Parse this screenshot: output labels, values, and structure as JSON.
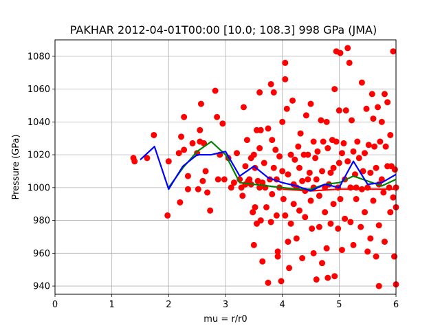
{
  "chart_data": {
    "type": "scatter",
    "title": "PAKHAR 2012-04-01T00:00 [10.0; 108.3] 998 GPa (JMA)",
    "xlabel": "mu = r/r0",
    "ylabel": "Pressure (GPa)",
    "xlim": [
      0,
      6
    ],
    "ylim": [
      935,
      1090
    ],
    "xticks": [
      0,
      1,
      2,
      3,
      4,
      5,
      6
    ],
    "yticks": [
      940,
      960,
      980,
      1000,
      1020,
      1040,
      1060,
      1080
    ],
    "grid": true,
    "colors": {
      "points": "#ff0000",
      "green_line": "#008000",
      "blue_line": "#0000ff",
      "red_line": "#ff0000",
      "grid": "#b0b0b0"
    },
    "points": [
      [
        1.38,
        1018
      ],
      [
        1.4,
        1016
      ],
      [
        1.62,
        1018
      ],
      [
        1.74,
        1032
      ],
      [
        1.98,
        983
      ],
      [
        2.0,
        1016
      ],
      [
        2.18,
        1021
      ],
      [
        2.2,
        991
      ],
      [
        2.22,
        1031
      ],
      [
        2.27,
        1043
      ],
      [
        2.27,
        1023
      ],
      [
        2.34,
        1007
      ],
      [
        2.34,
        999
      ],
      [
        2.42,
        1027
      ],
      [
        2.5,
        1021
      ],
      [
        2.52,
        999
      ],
      [
        2.55,
        1035
      ],
      [
        2.55,
        1028
      ],
      [
        2.57,
        1051
      ],
      [
        2.6,
        1004
      ],
      [
        2.62,
        1027
      ],
      [
        2.65,
        1010
      ],
      [
        2.68,
        997
      ],
      [
        2.73,
        986
      ],
      [
        2.82,
        1059
      ],
      [
        2.85,
        1043
      ],
      [
        2.87,
        1005
      ],
      [
        2.9,
        1020
      ],
      [
        2.95,
        1039
      ],
      [
        2.98,
        1005
      ],
      [
        3.05,
        1018
      ],
      [
        3.1,
        1000
      ],
      [
        3.15,
        1003
      ],
      [
        3.2,
        1021
      ],
      [
        3.25,
        1005
      ],
      [
        3.28,
        1000
      ],
      [
        3.3,
        995
      ],
      [
        3.32,
        1049
      ],
      [
        3.35,
        1002
      ],
      [
        3.35,
        1013
      ],
      [
        3.38,
        1029
      ],
      [
        3.4,
        1004
      ],
      [
        3.42,
        1005
      ],
      [
        3.45,
        1018
      ],
      [
        3.45,
        1002
      ],
      [
        3.48,
        985
      ],
      [
        3.5,
        1020
      ],
      [
        3.5,
        965
      ],
      [
        3.52,
        1012
      ],
      [
        3.52,
        988
      ],
      [
        3.55,
        1035
      ],
      [
        3.55,
        978
      ],
      [
        3.57,
        1004
      ],
      [
        3.6,
        1024
      ],
      [
        3.6,
        1000
      ],
      [
        3.6,
        1058
      ],
      [
        3.62,
        1035
      ],
      [
        3.62,
        980
      ],
      [
        3.65,
        955
      ],
      [
        3.65,
        1003
      ],
      [
        3.68,
        1015
      ],
      [
        3.7,
        1000
      ],
      [
        3.72,
        988
      ],
      [
        3.75,
        1036
      ],
      [
        3.75,
        942
      ],
      [
        3.78,
        1005
      ],
      [
        3.8,
        1063
      ],
      [
        3.8,
        979
      ],
      [
        3.82,
        1029
      ],
      [
        3.82,
        996
      ],
      [
        3.85,
        1058
      ],
      [
        3.85,
        1012
      ],
      [
        3.88,
        1023
      ],
      [
        3.9,
        1005
      ],
      [
        3.9,
        983
      ],
      [
        3.92,
        961
      ],
      [
        3.92,
        958
      ],
      [
        3.95,
        1019
      ],
      [
        3.95,
        1000
      ],
      [
        3.98,
        943
      ],
      [
        4.0,
        1040
      ],
      [
        4.0,
        1010
      ],
      [
        4.02,
        993
      ],
      [
        4.05,
        1076
      ],
      [
        4.05,
        1066
      ],
      [
        4.05,
        983
      ],
      [
        4.08,
        1048
      ],
      [
        4.1,
        1008
      ],
      [
        4.1,
        967
      ],
      [
        4.12,
        951
      ],
      [
        4.15,
        1020
      ],
      [
        4.15,
        978
      ],
      [
        4.18,
        1053
      ],
      [
        4.2,
        1002
      ],
      [
        4.2,
        990
      ],
      [
        4.22,
        1017
      ],
      [
        4.25,
        1000
      ],
      [
        4.25,
        969
      ],
      [
        4.28,
        1025
      ],
      [
        4.3,
        1012
      ],
      [
        4.3,
        986
      ],
      [
        4.32,
        1033
      ],
      [
        4.35,
        1004
      ],
      [
        4.35,
        957
      ],
      [
        4.38,
        1020
      ],
      [
        4.4,
        998
      ],
      [
        4.4,
        982
      ],
      [
        4.42,
        1044
      ],
      [
        4.45,
        1020
      ],
      [
        4.45,
        1005
      ],
      [
        4.48,
        1009
      ],
      [
        4.5,
        1051
      ],
      [
        4.5,
        992
      ],
      [
        4.52,
        975
      ],
      [
        4.55,
        1028
      ],
      [
        4.55,
        1000
      ],
      [
        4.55,
        960
      ],
      [
        4.58,
        1018
      ],
      [
        4.6,
        944
      ],
      [
        4.6,
        1005
      ],
      [
        4.62,
        1022
      ],
      [
        4.65,
        995
      ],
      [
        4.65,
        976
      ],
      [
        4.68,
        1041
      ],
      [
        4.7,
        1010
      ],
      [
        4.7,
        954
      ],
      [
        4.72,
        1028
      ],
      [
        4.75,
        1000
      ],
      [
        4.75,
        985
      ],
      [
        4.78,
        1040
      ],
      [
        4.78,
        963
      ],
      [
        4.8,
        1024
      ],
      [
        4.8,
        945
      ],
      [
        4.82,
        1002
      ],
      [
        4.85,
        1009
      ],
      [
        4.85,
        978
      ],
      [
        4.88,
        1029
      ],
      [
        4.9,
        1012
      ],
      [
        4.9,
        990
      ],
      [
        4.92,
        1060
      ],
      [
        4.92,
        946
      ],
      [
        4.95,
        1083
      ],
      [
        4.95,
        1028
      ],
      [
        4.98,
        1000
      ],
      [
        4.98,
        975
      ],
      [
        5.0,
        1047
      ],
      [
        5.0,
        1015
      ],
      [
        5.02,
        1082
      ],
      [
        5.02,
        993
      ],
      [
        5.05,
        1021
      ],
      [
        5.05,
        962
      ],
      [
        5.08,
        1027
      ],
      [
        5.1,
        1005
      ],
      [
        5.1,
        981
      ],
      [
        5.12,
        1047
      ],
      [
        5.15,
        1085
      ],
      [
        5.15,
        1016
      ],
      [
        5.18,
        1076
      ],
      [
        5.2,
        1000
      ],
      [
        5.2,
        979
      ],
      [
        5.22,
        1041
      ],
      [
        5.25,
        1022
      ],
      [
        5.25,
        965
      ],
      [
        5.28,
        1008
      ],
      [
        5.3,
        993
      ],
      [
        5.3,
        1000
      ],
      [
        5.32,
        1028
      ],
      [
        5.35,
        1018
      ],
      [
        5.38,
        976
      ],
      [
        5.4,
        1064
      ],
      [
        5.4,
        999
      ],
      [
        5.42,
        1010
      ],
      [
        5.45,
        1021
      ],
      [
        5.45,
        985
      ],
      [
        5.48,
        1048
      ],
      [
        5.5,
        1000
      ],
      [
        5.5,
        961
      ],
      [
        5.52,
        1026
      ],
      [
        5.55,
        1009
      ],
      [
        5.55,
        969
      ],
      [
        5.58,
        1057
      ],
      [
        5.6,
        1042
      ],
      [
        5.6,
        992
      ],
      [
        5.62,
        1025
      ],
      [
        5.65,
        1012
      ],
      [
        5.65,
        958
      ],
      [
        5.68,
        1049
      ],
      [
        5.7,
        1002
      ],
      [
        5.7,
        977
      ],
      [
        5.72,
        1028
      ],
      [
        5.75,
        1040
      ],
      [
        5.75,
        1005
      ],
      [
        5.78,
        997
      ],
      [
        5.8,
        1057
      ],
      [
        5.8,
        967
      ],
      [
        5.82,
        1025
      ],
      [
        5.85,
        1052
      ],
      [
        5.85,
        1013
      ],
      [
        5.88,
        1000
      ],
      [
        5.9,
        985
      ],
      [
        5.9,
        1032
      ],
      [
        5.92,
        1013
      ],
      [
        5.95,
        1083
      ],
      [
        5.95,
        994
      ],
      [
        5.97,
        958
      ],
      [
        5.98,
        1011
      ],
      [
        6.0,
        988
      ],
      [
        6.0,
        941
      ],
      [
        6.0,
        1000
      ],
      [
        5.7,
        940
      ]
    ],
    "series": [
      {
        "name": "",
        "color": "#008000",
        "x": [
          2.0,
          2.25,
          2.5,
          2.75,
          3.0,
          3.25,
          3.5,
          3.75,
          4.0,
          4.25,
          4.5,
          4.75,
          5.0,
          5.25,
          5.5,
          5.75,
          6.0
        ],
        "y": [
          1000,
          1012,
          1022,
          1028,
          1020,
          1003,
          1002,
          1001,
          1000,
          999,
          999,
          1002,
          1003,
          1007,
          1004,
          1001,
          1005
        ]
      },
      {
        "name": "",
        "color": "#0000ff",
        "x": [
          1.5,
          1.75,
          2.0,
          2.25,
          2.5,
          2.75,
          3.0,
          3.25,
          3.5,
          3.75,
          4.0,
          4.25,
          4.5,
          4.75,
          5.0,
          5.25,
          5.5,
          5.75,
          6.0
        ],
        "y": [
          1017,
          1025,
          999,
          1013,
          1020,
          1020,
          1022,
          1007,
          1013,
          1006,
          1003,
          1001,
          998,
          1002,
          1000,
          1016,
          1002,
          1003,
          1008
        ]
      },
      {
        "name": "",
        "color": "#ff0000",
        "x": [
          4.0,
          4.5,
          5.0,
          5.5,
          6.0
        ],
        "y": [
          999,
          998,
          999,
          999,
          999
        ]
      }
    ]
  }
}
